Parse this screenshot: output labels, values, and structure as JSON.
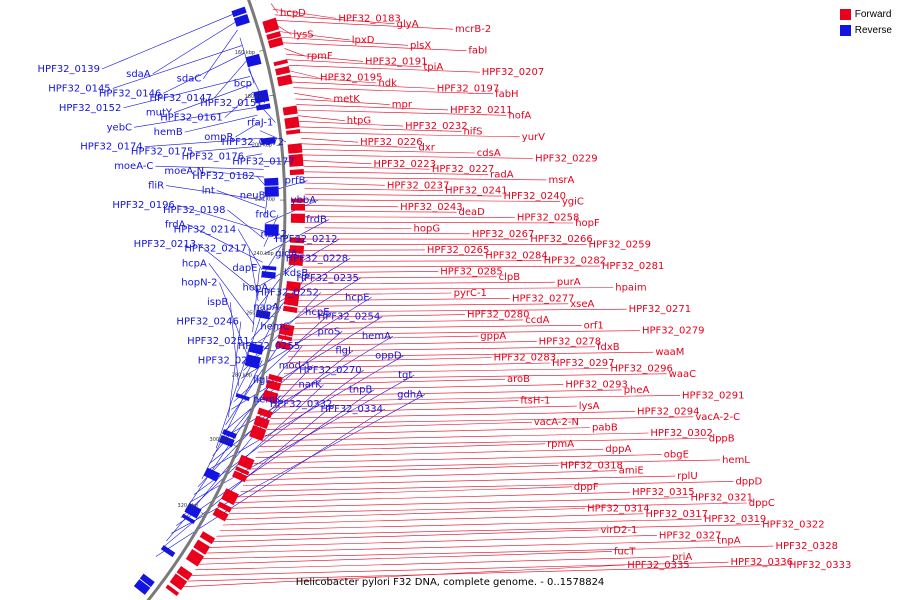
{
  "caption": "Helicobacter pylori F32 DNA, complete genome. - 0..1578824",
  "legend": {
    "forward_label": "Forward",
    "reverse_label": "Reverse",
    "forward_color": "#e8001c",
    "reverse_color": "#1414e0"
  },
  "scale_ticks": [
    "160 kbp",
    "180 kbp",
    "200 kbp",
    "220 kbp",
    "240 kbp",
    "260 kbp",
    "280 kbp",
    "300 kbp",
    "320 kbp"
  ],
  "reverse_labels": [
    "HPF32_0139",
    "sdaA",
    "sdaC",
    "bcp",
    "HPF32_0145",
    "HPF32_0146",
    "HPF32_0147",
    "HPF32_0151",
    "HPF32_0152",
    "mutY",
    "HPF32_0161",
    "rfaJ-1",
    "yebC",
    "hemB",
    "ompR",
    "HPF32_0172",
    "HPF32_0174",
    "HPF32_0175",
    "HPF32_0176",
    "HPF32_0177",
    "moeA-C",
    "moeA-N",
    "HPF32_0182",
    "prfB",
    "fliR",
    "lnt",
    "neuB",
    "ybbA",
    "HPF32_0196",
    "HPF32_0198",
    "frdC",
    "frdB",
    "frdA",
    "HPF32_0214",
    "rfaJ-2",
    "HPF32_0212",
    "HPF32_0213",
    "HPF32_0217",
    "gidA",
    "HPF32_0228",
    "hcpA",
    "dapE",
    "kdsB",
    "HPF32_0235",
    "hopN-2",
    "hopA",
    "HPF32_0252",
    "hcpE",
    "ispB",
    "napA",
    "hcpE",
    "HPF32_0254",
    "HPF32_0246",
    "hemC",
    "proS",
    "hemA",
    "HPF32_0251",
    "HPF32_0255",
    "flgI",
    "oppD",
    "HPF32_0261",
    "mod-1",
    "HPF32_0270",
    "tgt",
    "flgL",
    "narK",
    "tnpB",
    "gdhA",
    "hemK",
    "HPF32_0332",
    "HPF32_0334"
  ],
  "forward_labels": [
    "hcpD",
    "HPF32_0183",
    "glyA",
    "mcrB-2",
    "lysS",
    "lpxD",
    "plsX",
    "fabI",
    "rpmF",
    "HPF32_0191",
    "tpiA",
    "HPF32_0207",
    "HPF32_0195",
    "ndk",
    "HPF32_0197",
    "fabH",
    "metK",
    "mpr",
    "HPF32_0211",
    "hofA",
    "htpG",
    "HPF32_0232",
    "nifS",
    "yurV",
    "HPF32_0226",
    "dxr",
    "cdsA",
    "HPF32_0229",
    "HPF32_0223",
    "HPF32_0227",
    "radA",
    "msrA",
    "HPF32_0237",
    "HPF32_0241",
    "HPF32_0240",
    "ygiC",
    "HPF32_0243",
    "deaD",
    "HPF32_0258",
    "hopF",
    "hopG",
    "HPF32_0267",
    "HPF32_0266",
    "HPF32_0259",
    "HPF32_0265",
    "HPF32_0284",
    "HPF32_0282",
    "HPF32_0281",
    "HPF32_0285",
    "clpB",
    "purA",
    "hpaim",
    "pyrC-1",
    "HPF32_0277",
    "xseA",
    "HPF32_0271",
    "HPF32_0280",
    "ccdA",
    "orf1",
    "HPF32_0279",
    "gppA",
    "HPF32_0278",
    "fdxB",
    "waaM",
    "HPF32_0283",
    "HPF32_0297",
    "HPF32_0296",
    "waaC",
    "aroB",
    "HPF32_0293",
    "pheA",
    "HPF32_0291",
    "ftsH-1",
    "lysA",
    "HPF32_0294",
    "vacA-2-C",
    "vacA-2-N",
    "pabB",
    "HPF32_0302",
    "dppB",
    "rpmA",
    "dppA",
    "obgE",
    "hemL",
    "HPF32_0318",
    "amiE",
    "rplU",
    "dppD",
    "dppF",
    "HPF32_0315",
    "HPF32_0321",
    "dppC",
    "HPF32_0314",
    "HPF32_0317",
    "HPF32_0319",
    "HPF32_0322",
    "virD2-1",
    "HPF32_0327",
    "tnpA",
    "HPF32_0328",
    "fucT",
    "priA",
    "HPF32_0336",
    "HPF32_0333",
    "HPF32_0335"
  ]
}
